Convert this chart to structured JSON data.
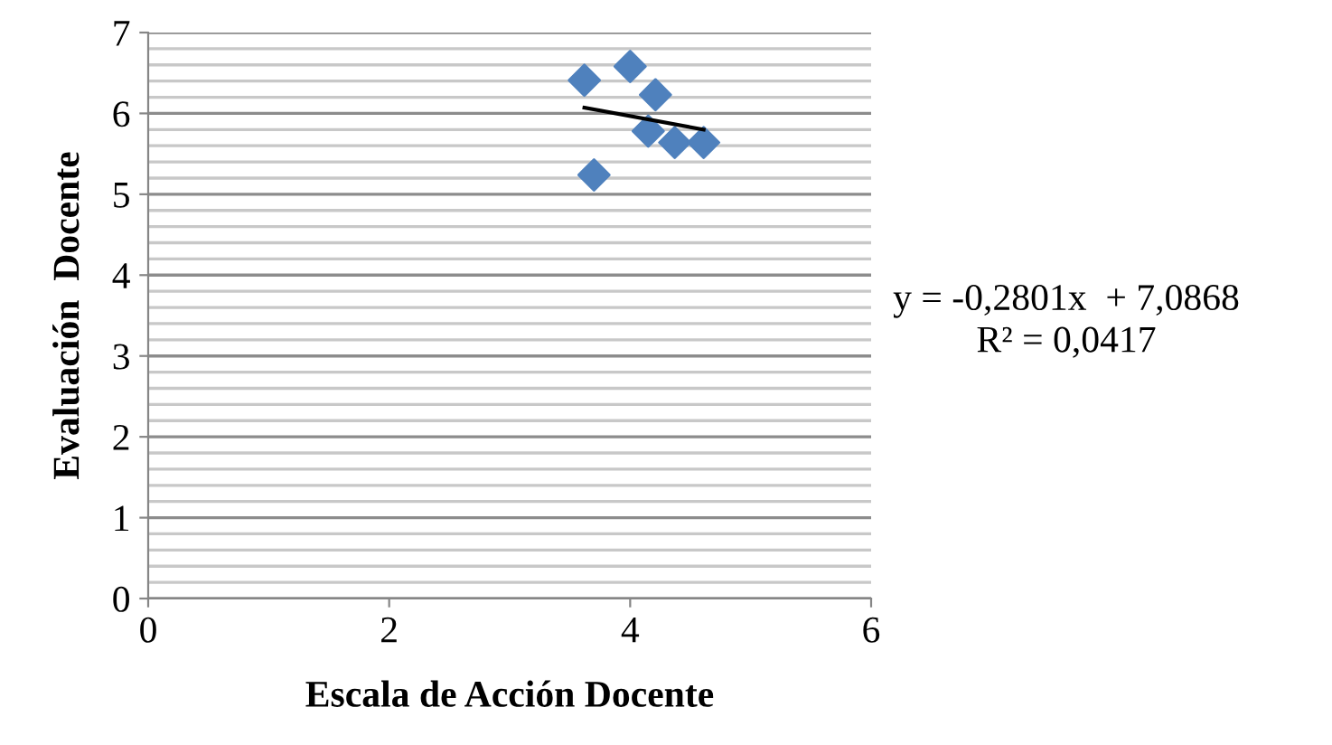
{
  "chart_data": {
    "type": "scatter",
    "xlabel": "Escala de Acción Docente",
    "ylabel": "Evaluación  Docente",
    "series": [
      {
        "color": "#4f81bd",
        "marker": "diamond",
        "x": [
          3.62,
          4.0,
          4.21,
          4.15,
          4.37,
          4.61,
          3.7
        ],
        "values": [
          6.41,
          6.58,
          6.23,
          5.78,
          5.64,
          5.64,
          5.24
        ]
      },
      {
        "type": "line",
        "color": "#000000",
        "marker": "none",
        "x": [
          3.62,
          4.61
        ],
        "values": [
          6.07,
          5.8
        ]
      }
    ],
    "xlim": [
      0,
      6
    ],
    "xticks": [
      0,
      2,
      4,
      6
    ],
    "ylim": [
      0,
      7
    ],
    "yticks": [
      0,
      1,
      2,
      3,
      4,
      5,
      6,
      7
    ],
    "grid": "y",
    "annotations": [
      "y = -0,2801x  + 7,0868\nR² = 0,0417"
    ]
  }
}
